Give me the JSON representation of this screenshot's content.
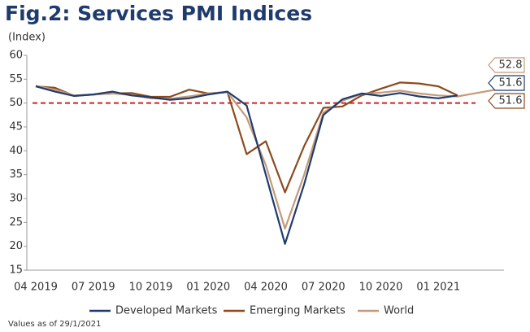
{
  "chart_data": {
    "type": "line",
    "title": "Fig.2: Services PMI Indices",
    "y_label": "(Index)",
    "footnote": "Values as of 29/1/2021",
    "categories": [
      "04 2019",
      null,
      null,
      "07 2019",
      null,
      null,
      "10 2019",
      null,
      null,
      "01 2020",
      null,
      null,
      "04 2020",
      null,
      null,
      "07 2020",
      null,
      null,
      "10 2020",
      null,
      null,
      "01 2021",
      null,
      null,
      null
    ],
    "series": [
      {
        "name": "Developed Markets",
        "color": "#1f3b6e",
        "end_label": "51.6",
        "values": [
          53.5,
          52.4,
          51.5,
          51.8,
          52.4,
          51.6,
          51.2,
          50.7,
          51.0,
          51.8,
          52.4,
          49.5,
          35.0,
          20.5,
          33.0,
          47.5,
          50.8,
          52.0,
          51.5,
          52.1,
          51.4,
          51.0,
          51.6,
          null,
          null
        ]
      },
      {
        "name": "Emerging Markets",
        "color": "#8c4a1e",
        "end_label": "51.6",
        "values": [
          53.5,
          53.2,
          51.5,
          51.8,
          52.0,
          52.1,
          51.3,
          51.3,
          52.8,
          52.0,
          52.3,
          39.3,
          42.0,
          31.3,
          41.0,
          49.0,
          49.3,
          51.6,
          53.0,
          54.3,
          54.1,
          53.5,
          51.6,
          null,
          null
        ]
      },
      {
        "name": "World",
        "color": "#c49a7a",
        "end_label": "52.8",
        "values": [
          53.6,
          52.8,
          51.6,
          51.8,
          52.0,
          51.7,
          51.0,
          50.9,
          51.4,
          52.0,
          52.3,
          47.0,
          37.0,
          23.7,
          35.0,
          48.0,
          50.5,
          51.9,
          52.2,
          52.6,
          52.0,
          51.6,
          51.4,
          52.1,
          52.8
        ]
      }
    ],
    "reference_line": {
      "value": 50,
      "color": "#d42020"
    },
    "ylim": [
      15,
      60
    ],
    "yticks": [
      15,
      20,
      25,
      30,
      35,
      40,
      45,
      50,
      55,
      60
    ]
  }
}
